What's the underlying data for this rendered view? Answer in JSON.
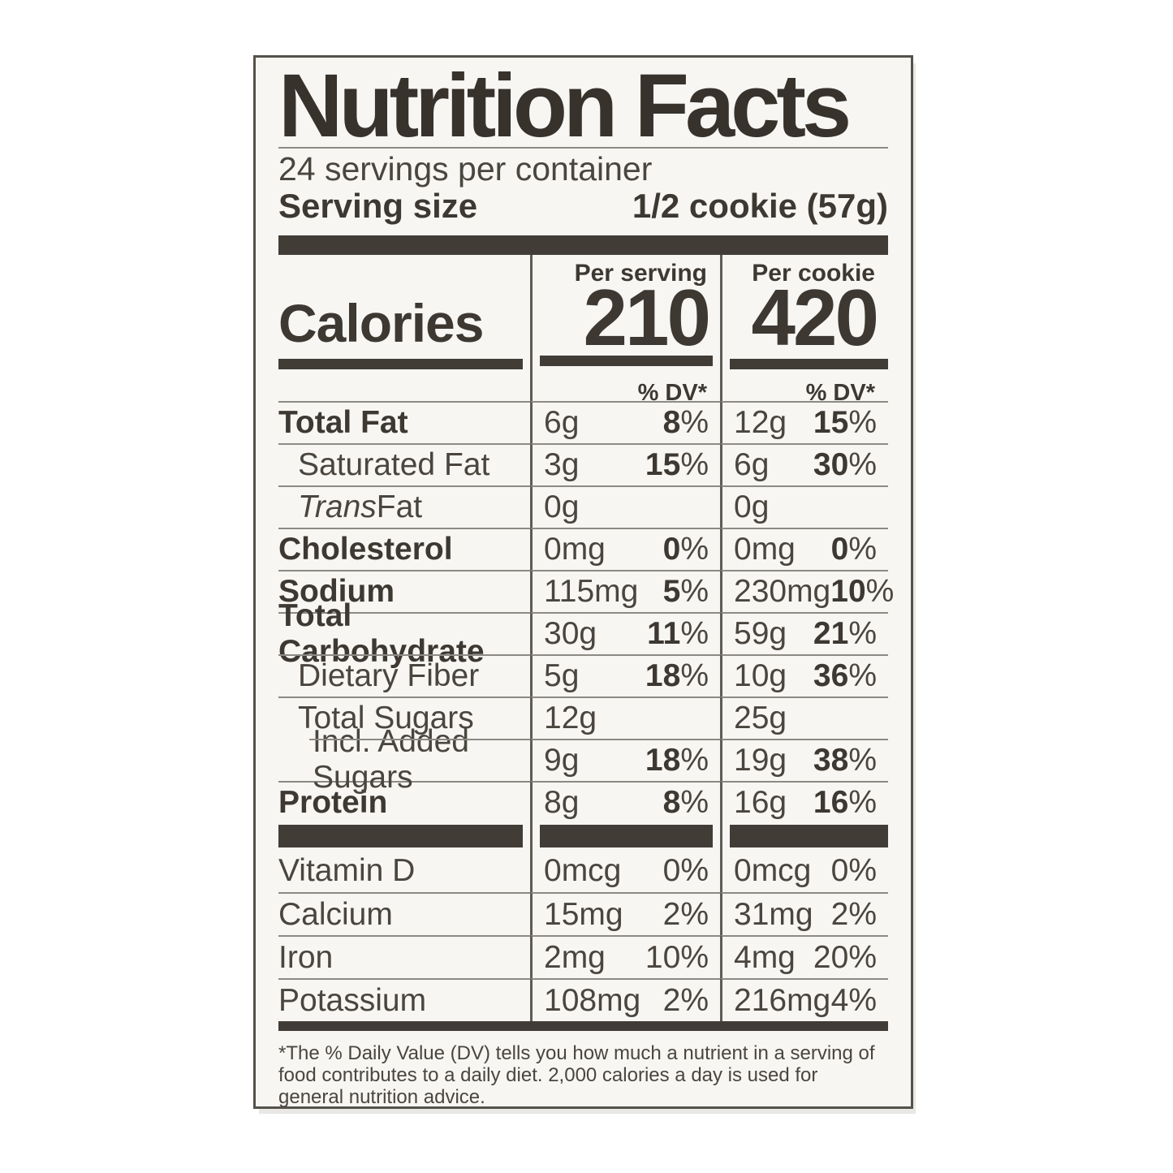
{
  "label": {
    "title": "Nutrition Facts",
    "servings_per_container": "24 servings per container",
    "serving_size_label": "Serving size",
    "serving_size_value": "1/2 cookie (57g)",
    "calories": {
      "label": "Calories",
      "per_serving_header": "Per serving",
      "per_serving_value": "210",
      "per_cookie_header": "Per cookie",
      "per_cookie_value": "420",
      "dv_header": "% DV*"
    },
    "colors": {
      "ink": "#3a352f",
      "bar": "#413c36",
      "hairline": "#8d8a84",
      "column_divider": "#5f5b55",
      "label_background": "#f7f6f3",
      "border": "#55514b"
    },
    "nutrient_rows": [
      {
        "name": "Total Fat",
        "bold": true,
        "indent": 0,
        "serving_amount": "6g",
        "serving_dv": "8%",
        "cookie_amount": "12g",
        "cookie_dv": "15%"
      },
      {
        "name": "Saturated Fat",
        "bold": false,
        "indent": 1,
        "serving_amount": "3g",
        "serving_dv": "15%",
        "cookie_amount": "6g",
        "cookie_dv": "30%"
      },
      {
        "name": "Trans Fat",
        "bold": false,
        "indent": 1,
        "italic_prefix": "Trans",
        "serving_amount": "0g",
        "serving_dv": "",
        "cookie_amount": "0g",
        "cookie_dv": ""
      },
      {
        "name": "Cholesterol",
        "bold": true,
        "indent": 0,
        "serving_amount": "0mg",
        "serving_dv": "0%",
        "cookie_amount": "0mg",
        "cookie_dv": "0%"
      },
      {
        "name": "Sodium",
        "bold": true,
        "indent": 0,
        "serving_amount": "115mg",
        "serving_dv": "5%",
        "cookie_amount": "230mg",
        "cookie_dv": "10%"
      },
      {
        "name": "Total Carbohydrate",
        "bold": true,
        "indent": 0,
        "serving_amount": "30g",
        "serving_dv": "11%",
        "cookie_amount": "59g",
        "cookie_dv": "21%"
      },
      {
        "name": "Dietary Fiber",
        "bold": false,
        "indent": 1,
        "serving_amount": "5g",
        "serving_dv": "18%",
        "cookie_amount": "10g",
        "cookie_dv": "36%"
      },
      {
        "name": "Total Sugars",
        "bold": false,
        "indent": 1,
        "serving_amount": "12g",
        "serving_dv": "",
        "cookie_amount": "25g",
        "cookie_dv": ""
      },
      {
        "name": "Incl. Added Sugars",
        "bold": false,
        "indent": 2,
        "indent_line": true,
        "serving_amount": "9g",
        "serving_dv": "18%",
        "cookie_amount": "19g",
        "cookie_dv": "38%"
      },
      {
        "name": "Protein",
        "bold": true,
        "indent": 0,
        "serving_amount": "8g",
        "serving_dv": "8%",
        "cookie_amount": "16g",
        "cookie_dv": "16%"
      }
    ],
    "micronutrient_rows": [
      {
        "name": "Vitamin D",
        "serving_amount": "0mcg",
        "serving_dv": "0%",
        "cookie_amount": "0mcg",
        "cookie_dv": "0%"
      },
      {
        "name": "Calcium",
        "serving_amount": "15mg",
        "serving_dv": "2%",
        "cookie_amount": "31mg",
        "cookie_dv": "2%"
      },
      {
        "name": "Iron",
        "serving_amount": "2mg",
        "serving_dv": "10%",
        "cookie_amount": "4mg",
        "cookie_dv": "20%"
      },
      {
        "name": "Potassium",
        "serving_amount": "108mg",
        "serving_dv": "2%",
        "cookie_amount": "216mg",
        "cookie_dv": "4%"
      }
    ],
    "footnote": "*The % Daily Value (DV) tells you how much a nutrient in a serving of food contributes to a daily diet. 2,000 calories a day is used for general nutrition advice."
  }
}
